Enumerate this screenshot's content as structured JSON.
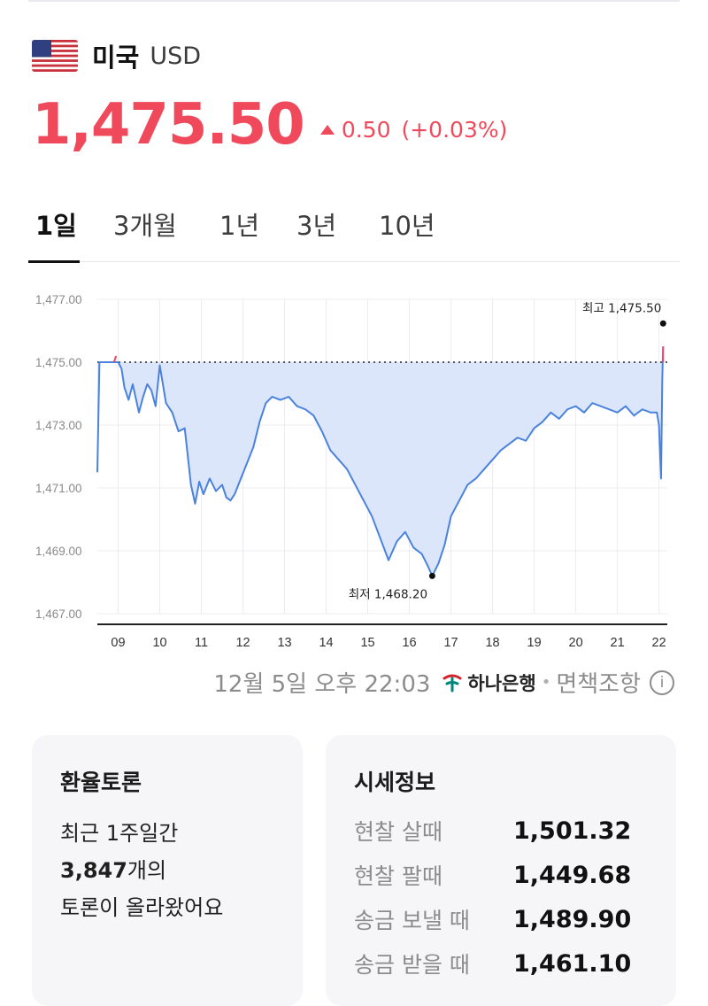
{
  "header": {
    "flag_icon": "us-flag-icon",
    "country": "미국",
    "code": "USD"
  },
  "price": {
    "value": "1,475.50",
    "change": "0.50",
    "change_pct": "(+0.03%)",
    "color_up": "#f0495b"
  },
  "tabs": [
    "1일",
    "3개월",
    "1년",
    "3년",
    "10년"
  ],
  "active_tab": "1일",
  "chart_data": {
    "type": "area",
    "y_tick_labels": [
      "1,477.00",
      "1,475.00",
      "1,473.00",
      "1,471.00",
      "1,469.00",
      "1,467.00"
    ],
    "ylim": [
      1467,
      1477
    ],
    "x_tick_labels": [
      "09",
      "10",
      "11",
      "12",
      "13",
      "14",
      "15",
      "16",
      "17",
      "18",
      "19",
      "20",
      "21",
      "22"
    ],
    "xlim": [
      8.5,
      22.2
    ],
    "baseline": 1475.0,
    "series": [
      {
        "line_color": "#4a82de",
        "fill_color": "#dbe6fb",
        "x": [
          8.5,
          8.55,
          8.9,
          9.0,
          9.08,
          9.15,
          9.25,
          9.35,
          9.5,
          9.6,
          9.7,
          9.8,
          9.9,
          10.0,
          10.15,
          10.3,
          10.45,
          10.6,
          10.75,
          10.85,
          10.95,
          11.05,
          11.2,
          11.35,
          11.5,
          11.6,
          11.7,
          11.8,
          11.95,
          12.1,
          12.25,
          12.4,
          12.55,
          12.7,
          12.9,
          13.1,
          13.3,
          13.5,
          13.7,
          13.9,
          14.1,
          14.3,
          14.5,
          14.7,
          14.9,
          15.1,
          15.3,
          15.5,
          15.7,
          15.9,
          16.1,
          16.3,
          16.45,
          16.55,
          16.7,
          16.85,
          17.0,
          17.2,
          17.4,
          17.6,
          17.8,
          18.0,
          18.2,
          18.4,
          18.6,
          18.8,
          19.0,
          19.2,
          19.4,
          19.6,
          19.8,
          20.0,
          20.2,
          20.4,
          20.6,
          20.8,
          21.0,
          21.2,
          21.4,
          21.6,
          21.8,
          21.95,
          22.0,
          22.05,
          22.08,
          22.1
        ],
        "y": [
          1471.5,
          1475.0,
          1475.0,
          1475.0,
          1474.8,
          1474.2,
          1473.8,
          1474.3,
          1473.4,
          1473.9,
          1474.3,
          1474.1,
          1473.6,
          1474.9,
          1473.7,
          1473.4,
          1472.8,
          1472.9,
          1471.1,
          1470.5,
          1471.2,
          1470.8,
          1471.3,
          1470.9,
          1471.1,
          1470.7,
          1470.6,
          1470.8,
          1471.3,
          1471.8,
          1472.3,
          1473.1,
          1473.7,
          1473.9,
          1473.8,
          1473.9,
          1473.6,
          1473.5,
          1473.3,
          1472.8,
          1472.2,
          1471.9,
          1471.6,
          1471.1,
          1470.6,
          1470.1,
          1469.4,
          1468.7,
          1469.3,
          1469.6,
          1469.1,
          1468.9,
          1468.5,
          1468.2,
          1468.6,
          1469.2,
          1470.1,
          1470.6,
          1471.1,
          1471.3,
          1471.6,
          1471.9,
          1472.2,
          1472.4,
          1472.6,
          1472.5,
          1472.9,
          1473.1,
          1473.4,
          1473.2,
          1473.5,
          1473.6,
          1473.4,
          1473.7,
          1473.6,
          1473.5,
          1473.4,
          1473.6,
          1473.3,
          1473.5,
          1473.4,
          1473.4,
          1473.0,
          1471.3,
          1474.5,
          1475.5
        ]
      }
    ],
    "max_marker": {
      "label": "최고 1,475.50",
      "x": 22.1,
      "y": 1475.5
    },
    "min_marker": {
      "label": "최저 1,468.20",
      "x": 16.55,
      "y": 1468.2
    },
    "grid": true
  },
  "source": {
    "datetime": "12월 5일 오후 22:03",
    "bank": "하나은행",
    "disclaimer": "면책조항",
    "bank_icon": "hana-bank-logo-icon",
    "info_icon": "info-icon"
  },
  "discussion": {
    "title": "환율토론",
    "line1": "최근 1주일간",
    "count": "3,847",
    "count_suffix": "개의",
    "line3": "토론이 올라왔어요"
  },
  "market_info": {
    "title": "시세정보",
    "rows": [
      {
        "label": "현찰 살때",
        "value": "1,501.32"
      },
      {
        "label": "현찰 팔때",
        "value": "1,449.68"
      },
      {
        "label": "송금 보낼 때",
        "value": "1,489.90"
      },
      {
        "label": "송금 받을 때",
        "value": "1,461.10"
      }
    ]
  }
}
